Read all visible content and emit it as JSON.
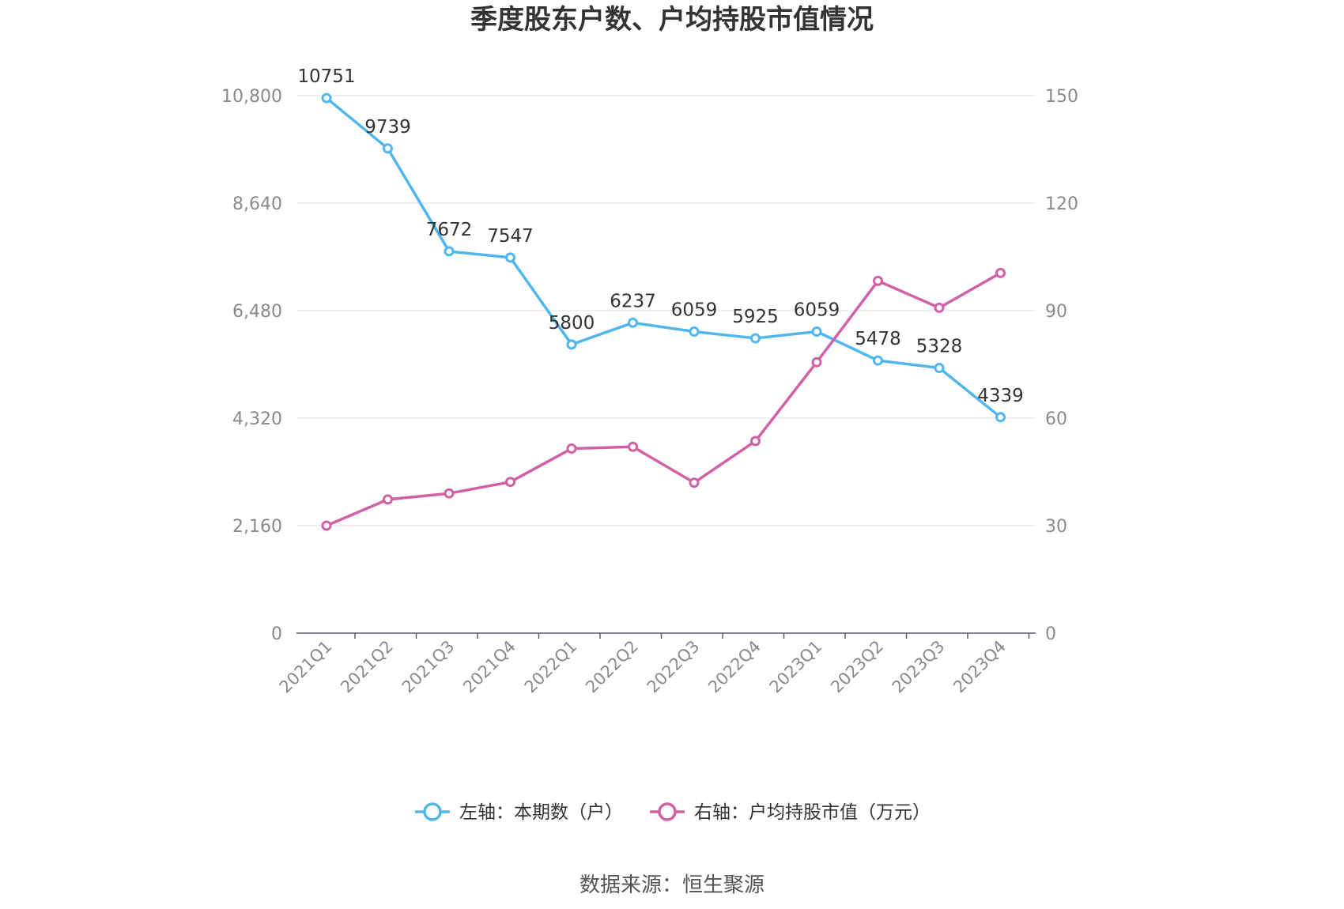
{
  "title": "季度股东户数、户均持股市值情况",
  "source": "数据来源：恒生聚源",
  "colors": {
    "left": "#4fb7ee",
    "right": "#d260a6",
    "grid": "#dde0ee",
    "axis": "#555b6e"
  },
  "chart_data": {
    "type": "line",
    "categories": [
      "2021Q1",
      "2021Q2",
      "2021Q3",
      "2021Q4",
      "2022Q1",
      "2022Q2",
      "2022Q3",
      "2022Q4",
      "2023Q1",
      "2023Q2",
      "2023Q3",
      "2023Q4"
    ],
    "left_axis": {
      "min": 0,
      "max": 10800,
      "ticks": [
        0,
        2160,
        4320,
        6480,
        8640,
        10800
      ],
      "tick_labels": [
        "0",
        "2,160",
        "4,320",
        "6,480",
        "8,640",
        "10,800"
      ]
    },
    "right_axis": {
      "min": 0,
      "max": 150,
      "ticks": [
        0,
        30,
        60,
        90,
        120,
        150
      ],
      "tick_labels": [
        "0",
        "30",
        "60",
        "90",
        "120",
        "150"
      ]
    },
    "grid": true,
    "legend_position": "bottom",
    "series": [
      {
        "name": "左轴：本期数（户）",
        "axis": "left",
        "values": [
          10751,
          9739,
          7672,
          7547,
          5800,
          6237,
          6059,
          5925,
          6059,
          5478,
          5328,
          4339
        ],
        "labels": [
          "10751",
          "9739",
          "7672",
          "7547",
          "5800",
          "6237",
          "6059",
          "5925",
          "6059",
          "5478",
          "5328",
          "4339"
        ]
      },
      {
        "name": "右轴：户均持股市值（万元）",
        "axis": "right",
        "values": [
          30.0,
          37.3,
          39.0,
          42.2,
          51.5,
          52.0,
          42.0,
          53.6,
          75.6,
          98.3,
          90.8,
          100.5
        ]
      }
    ]
  }
}
